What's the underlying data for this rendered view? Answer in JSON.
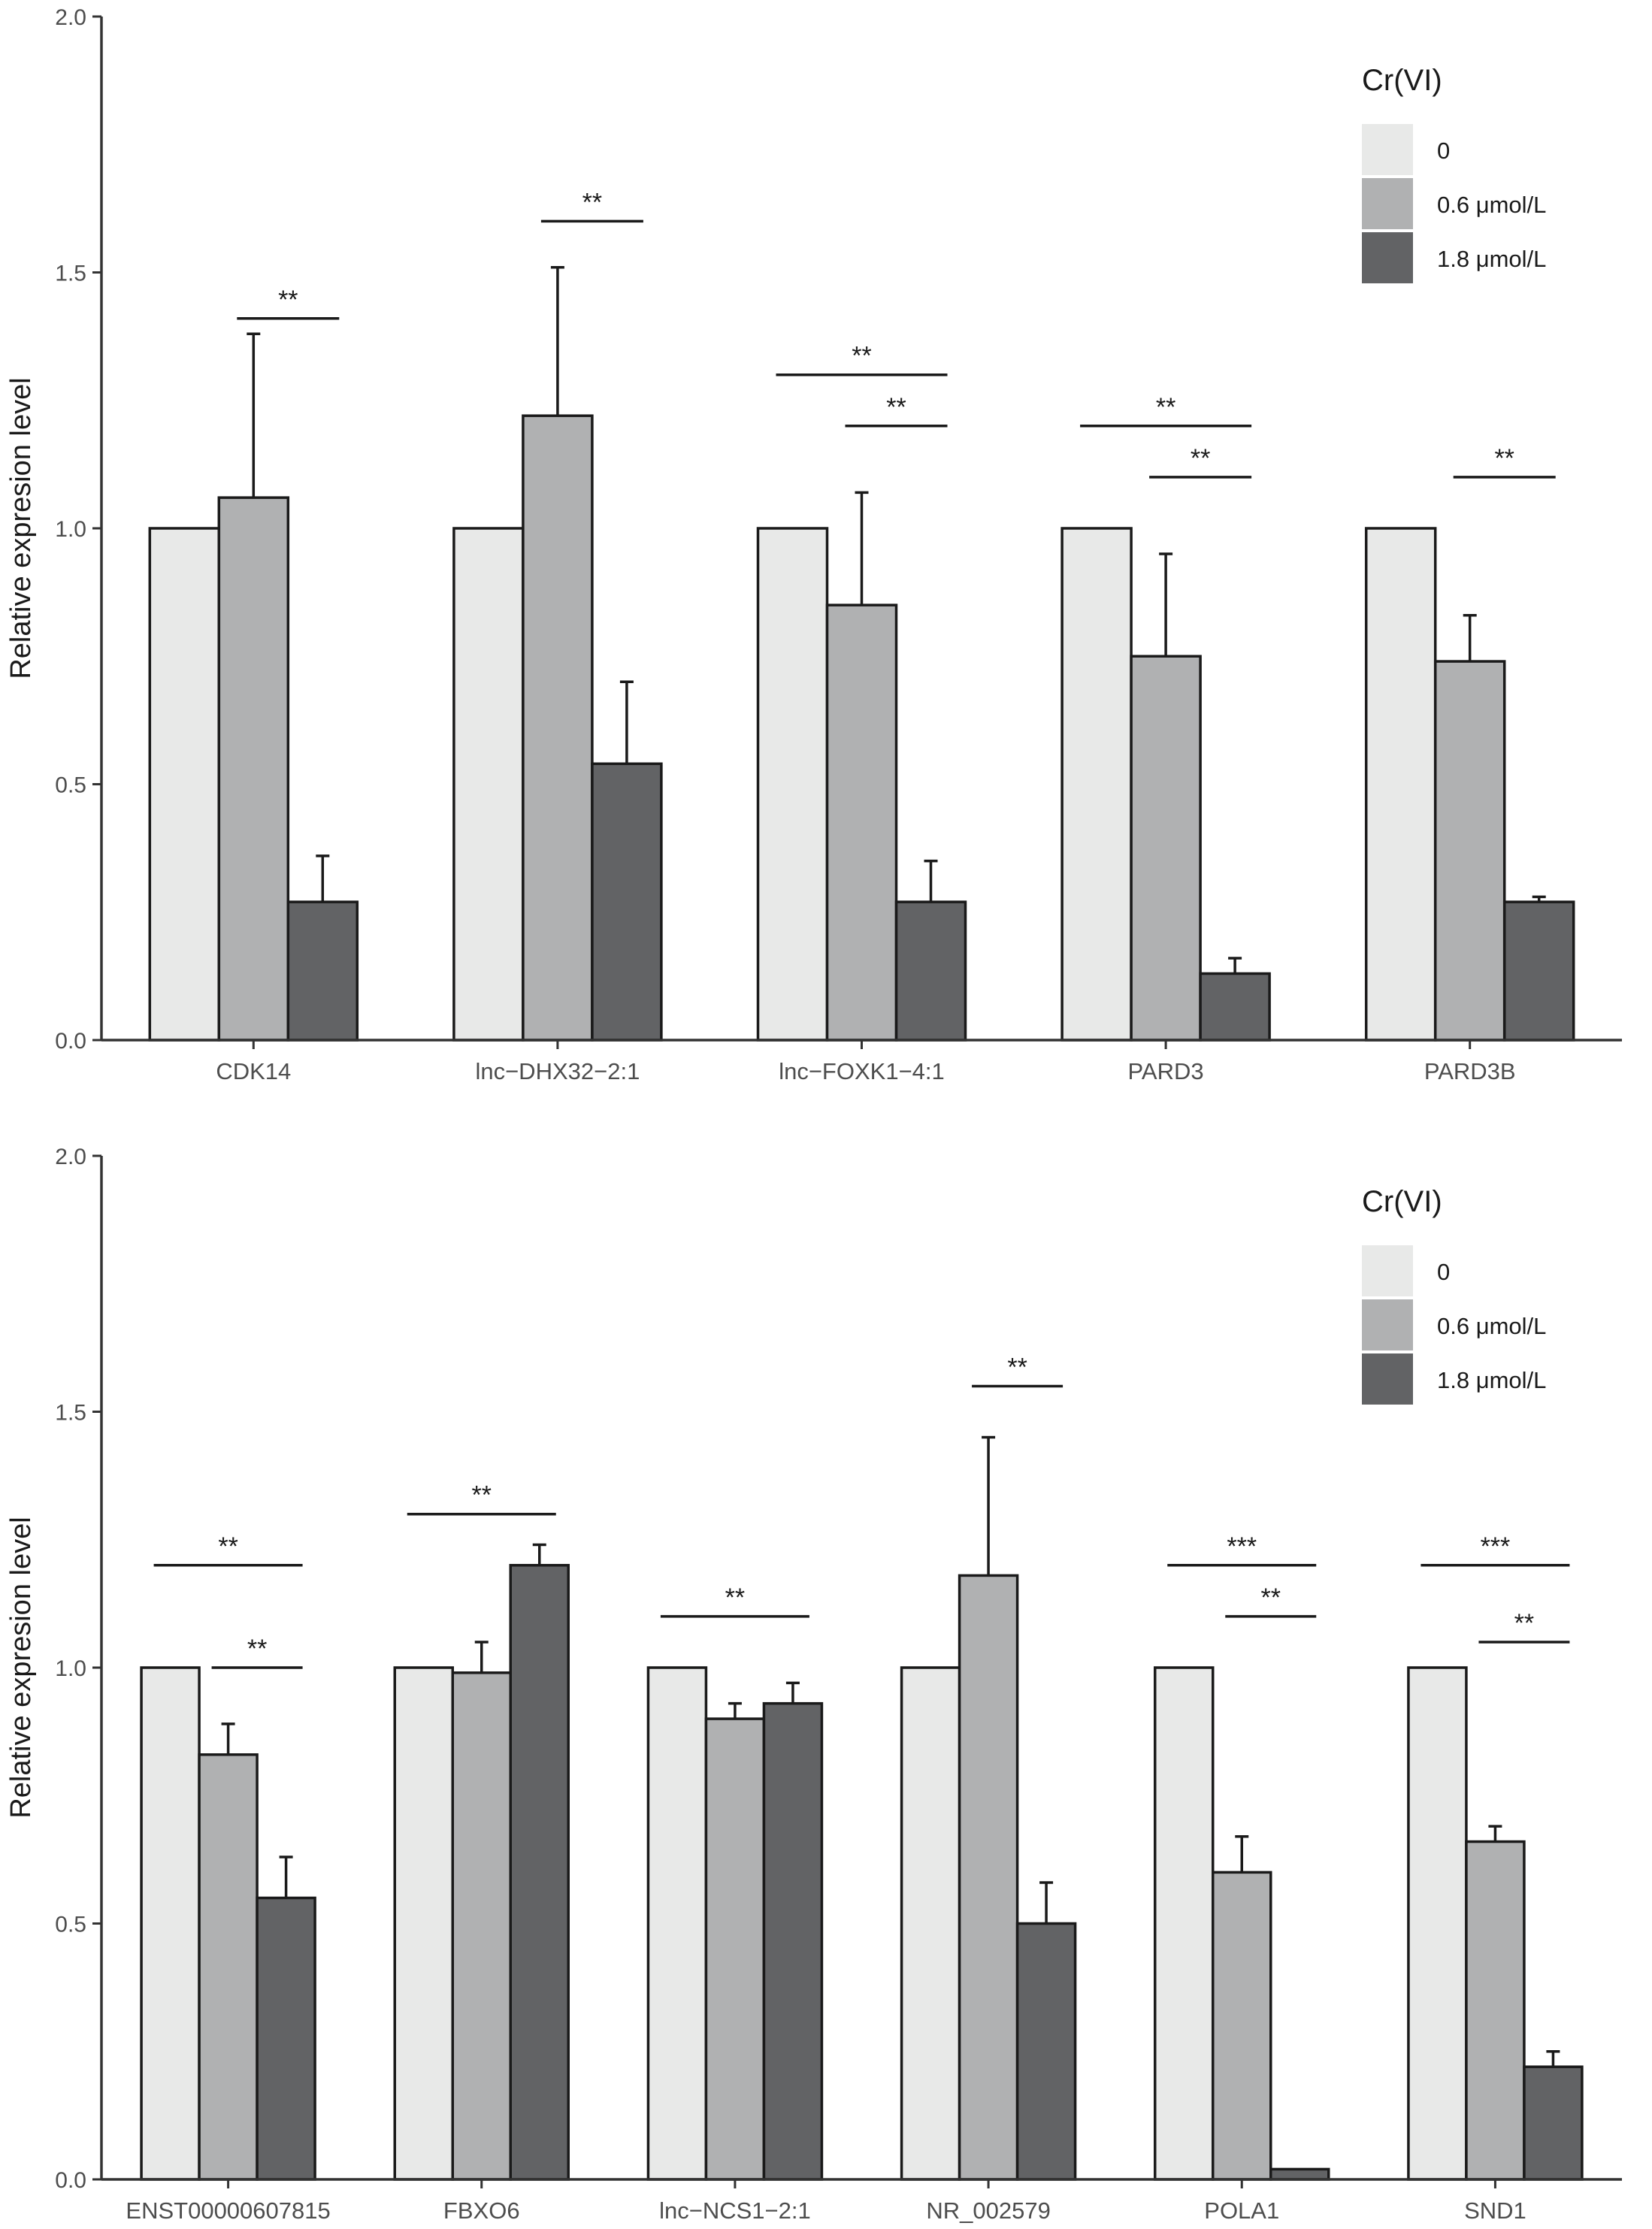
{
  "chart_data": [
    {
      "type": "bar",
      "ylabel": "Relative expresion level",
      "ylim": [
        0,
        2.0
      ],
      "yticks": [
        "0.0",
        "0.5",
        "1.0",
        "1.5",
        "2.0"
      ],
      "legend": {
        "title": "Cr(VI)",
        "entries": [
          "0",
          "0.6 μmol/L",
          "1.8 μmol/L"
        ],
        "colors": [
          "#e8e9e8",
          "#b0b1b2",
          "#626365"
        ]
      },
      "categories": [
        "CDK14",
        "lnc−DHX32−2:1",
        "lnc−FOXK1−4:1",
        "PARD3",
        "PARD3B"
      ],
      "series": [
        {
          "name": "0",
          "values": [
            1.0,
            1.0,
            1.0,
            1.0,
            1.0
          ],
          "errors": [
            0,
            0,
            0,
            0,
            0
          ]
        },
        {
          "name": "0.6 μmol/L",
          "values": [
            1.06,
            1.22,
            0.85,
            0.75,
            0.74
          ],
          "errors": [
            0.32,
            0.29,
            0.22,
            0.2,
            0.09
          ]
        },
        {
          "name": "1.8 μmol/L",
          "values": [
            0.27,
            0.54,
            0.27,
            0.13,
            0.27
          ],
          "errors": [
            0.09,
            0.16,
            0.08,
            0.03,
            0.01
          ]
        }
      ],
      "significance": [
        {
          "label": "**",
          "category": 0,
          "from": 1,
          "to": 2,
          "y": 1.41
        },
        {
          "label": "**",
          "category": 1,
          "from": 1,
          "to": 2,
          "y": 1.6
        },
        {
          "label": "**",
          "category": 2,
          "from": 0,
          "to": 2,
          "y": 1.3
        },
        {
          "label": "**",
          "category": 2,
          "from": 1,
          "to": 2,
          "y": 1.2
        },
        {
          "label": "**",
          "category": 3,
          "from": 0,
          "to": 2,
          "y": 1.2
        },
        {
          "label": "**",
          "category": 3,
          "from": 1,
          "to": 2,
          "y": 1.1
        },
        {
          "label": "**",
          "category": 4,
          "from": 1,
          "to": 2,
          "y": 1.1
        }
      ]
    },
    {
      "type": "bar",
      "ylabel": "Relative expresion level",
      "ylim": [
        0,
        2.0
      ],
      "yticks": [
        "0.0",
        "0.5",
        "1.0",
        "1.5",
        "2.0"
      ],
      "legend": {
        "title": "Cr(VI)",
        "entries": [
          "0",
          "0.6 μmol/L",
          "1.8 μmol/L"
        ],
        "colors": [
          "#e8e9e8",
          "#b0b1b2",
          "#626365"
        ]
      },
      "categories": [
        "ENST00000607815",
        "FBXO6",
        "lnc−NCS1−2:1",
        "NR_002579",
        "POLA1",
        "SND1"
      ],
      "series": [
        {
          "name": "0",
          "values": [
            1.0,
            1.0,
            1.0,
            1.0,
            1.0,
            1.0
          ],
          "errors": [
            0,
            0,
            0,
            0,
            0,
            0
          ]
        },
        {
          "name": "0.6 μmol/L",
          "values": [
            0.83,
            0.99,
            0.9,
            1.18,
            0.6,
            0.66
          ],
          "errors": [
            0.06,
            0.06,
            0.03,
            0.27,
            0.07,
            0.03
          ]
        },
        {
          "name": "1.8 μmol/L",
          "values": [
            0.55,
            1.2,
            0.93,
            0.5,
            0.02,
            0.22
          ],
          "errors": [
            0.08,
            0.04,
            0.04,
            0.08,
            0,
            0.03
          ]
        }
      ],
      "significance": [
        {
          "label": "**",
          "category": 0,
          "from": 0,
          "to": 2,
          "y": 1.2
        },
        {
          "label": "**",
          "category": 0,
          "from": 1,
          "to": 2,
          "y": 1.0
        },
        {
          "label": "**",
          "category": 1,
          "from": 0,
          "to": 2,
          "y": 1.3
        },
        {
          "label": "**",
          "category": 2,
          "from": 0,
          "to": 2,
          "y": 1.1
        },
        {
          "label": "**",
          "category": 3,
          "from": 1,
          "to": 2,
          "y": 1.55
        },
        {
          "label": "***",
          "category": 4,
          "from": 0,
          "to": 2,
          "y": 1.2
        },
        {
          "label": "**",
          "category": 4,
          "from": 1,
          "to": 2,
          "y": 1.1
        },
        {
          "label": "***",
          "category": 5,
          "from": 0,
          "to": 2,
          "y": 1.2
        },
        {
          "label": "**",
          "category": 5,
          "from": 1,
          "to": 2,
          "y": 1.05
        }
      ]
    }
  ]
}
